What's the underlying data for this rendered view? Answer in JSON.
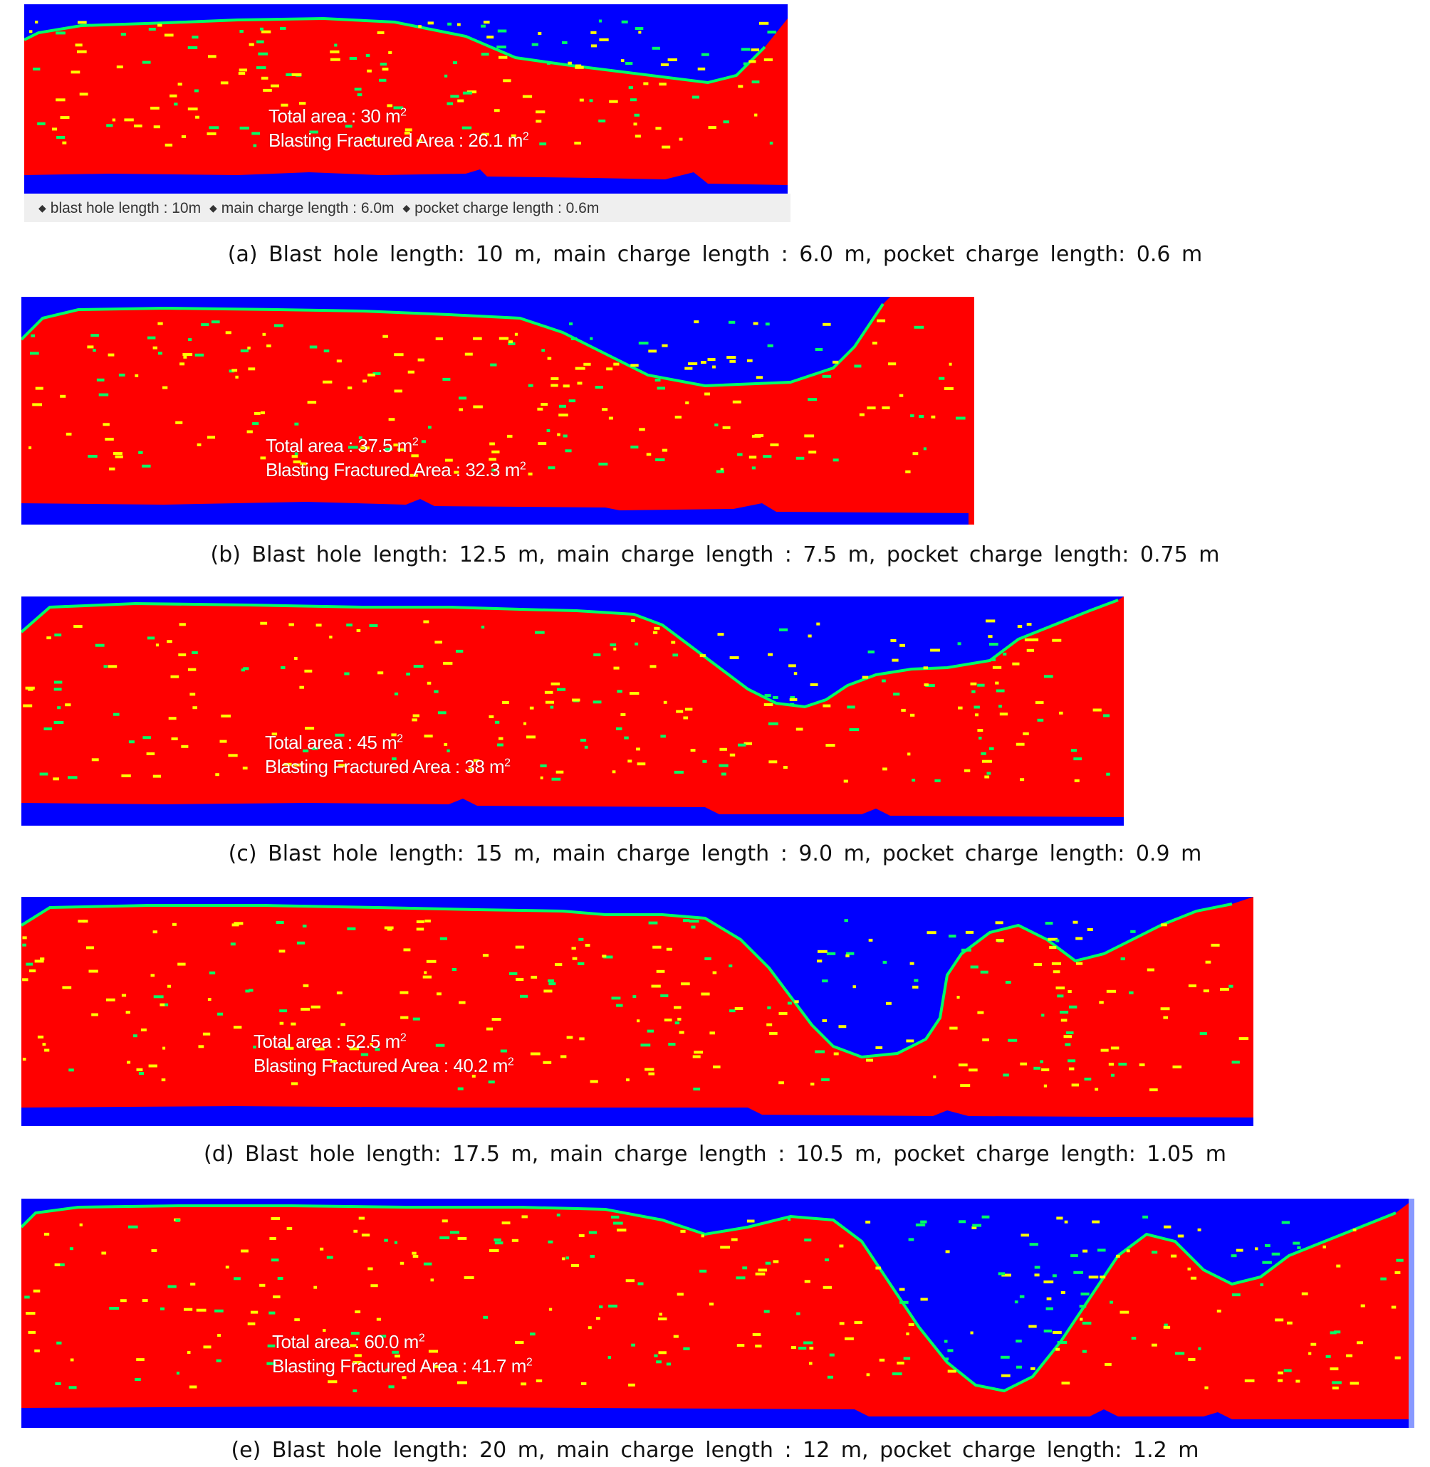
{
  "colors": {
    "fractured": "#ff0000",
    "intact": "#0000ff",
    "transition_light": "#ffff00",
    "transition_mid": "#00ff66"
  },
  "panels": [
    {
      "id": "a",
      "total_area": "Total area : 30 m",
      "fractured_area": "Blasting Fractured Area : 26.1 m",
      "unit_exponent": "2",
      "parameter_bar": {
        "items": [
          "blast hole length : 10m",
          "main charge length : 6.0m",
          "pocket charge length : 0.6m"
        ],
        "separator": "◆"
      },
      "caption": "(a) Blast hole length: 10 m, main charge length : 6.0 m, pocket charge length: 0.6 m"
    },
    {
      "id": "b",
      "total_area": "Total area : 37.5 m",
      "fractured_area": "Blasting Fractured Area : 32.3 m",
      "unit_exponent": "2",
      "caption": "(b) Blast hole length: 12.5 m, main charge length : 7.5 m, pocket charge length: 0.75 m"
    },
    {
      "id": "c",
      "total_area": "Total area : 45 m",
      "fractured_area": "Blasting Fractured Area : 38 m",
      "unit_exponent": "2",
      "caption": "(c) Blast hole length: 15 m, main charge length : 9.0 m, pocket charge length: 0.9 m"
    },
    {
      "id": "d",
      "total_area": "Total area : 52.5 m",
      "fractured_area": "Blasting Fractured Area : 40.2 m",
      "unit_exponent": "2",
      "caption": "(d) Blast hole length: 17.5 m, main charge length : 10.5 m, pocket charge length: 1.05 m"
    },
    {
      "id": "e",
      "total_area": "Total area : 60.0 m",
      "fractured_area": "Blasting Fractured Area : 41.7 m",
      "unit_exponent": "2",
      "caption": "(e) Blast hole length: 20 m, main charge length : 12 m, pocket charge length: 1.2 m"
    }
  ]
}
